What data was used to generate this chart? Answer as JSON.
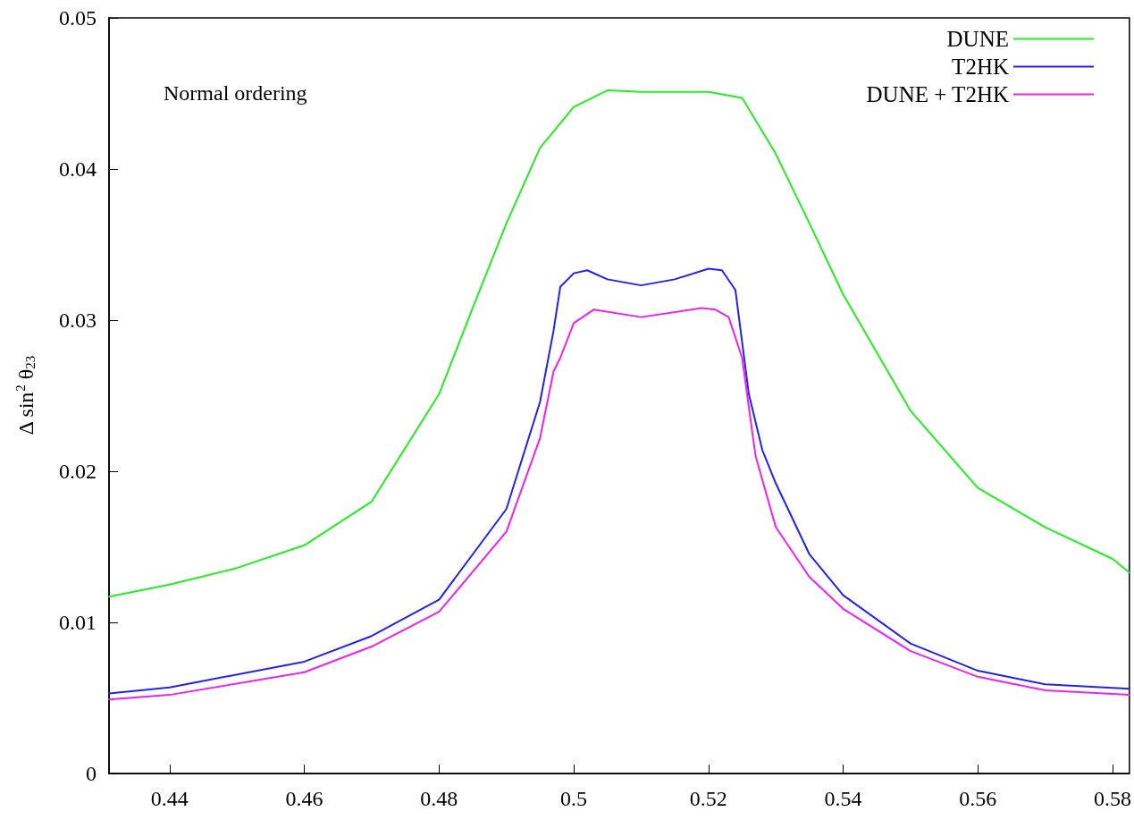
{
  "chart_data": {
    "type": "line",
    "ylabel": "Δ sin$^{2}$ θ$_{23}$",
    "annotations": [
      "Normal ordering"
    ],
    "xlim": [
      0.431,
      0.5825
    ],
    "xticks": [
      0.44,
      0.46,
      0.48,
      0.5,
      0.52,
      0.54,
      0.56,
      0.58
    ],
    "ylim": [
      0,
      0.05
    ],
    "yticks": [
      0,
      0.01,
      0.02,
      0.03,
      0.04,
      0.05
    ],
    "legend": "top right",
    "grid": false,
    "marker": "none",
    "line_style": "solid",
    "series": [
      {
        "name": "DUNE",
        "color": "#22ee22",
        "x": [
          0.431,
          0.44,
          0.45,
          0.46,
          0.47,
          0.48,
          0.485,
          0.49,
          0.495,
          0.5,
          0.505,
          0.51,
          0.515,
          0.52,
          0.525,
          0.53,
          0.535,
          0.54,
          0.55,
          0.56,
          0.57,
          0.58,
          0.5825
        ],
        "values": [
          0.0117,
          0.0125,
          0.0136,
          0.0151,
          0.018,
          0.0251,
          0.0308,
          0.0364,
          0.0414,
          0.0441,
          0.0452,
          0.0451,
          0.0451,
          0.0451,
          0.0447,
          0.041,
          0.0364,
          0.0317,
          0.024,
          0.0189,
          0.0163,
          0.0142,
          0.0133
        ]
      },
      {
        "name": "T2HK",
        "color": "#2222ee",
        "x": [
          0.431,
          0.44,
          0.46,
          0.47,
          0.48,
          0.49,
          0.495,
          0.497,
          0.498,
          0.5,
          0.502,
          0.505,
          0.51,
          0.515,
          0.52,
          0.522,
          0.524,
          0.526,
          0.528,
          0.53,
          0.535,
          0.54,
          0.55,
          0.56,
          0.57,
          0.5825
        ],
        "values": [
          0.0053,
          0.0057,
          0.0074,
          0.0091,
          0.0115,
          0.0175,
          0.0246,
          0.0293,
          0.0322,
          0.0331,
          0.0333,
          0.0327,
          0.0323,
          0.0327,
          0.0334,
          0.0333,
          0.032,
          0.0251,
          0.0214,
          0.0192,
          0.0145,
          0.0118,
          0.0086,
          0.0068,
          0.0059,
          0.0056
        ]
      },
      {
        "name": "DUNE + T2HK",
        "color": "#ee22ee",
        "x": [
          0.431,
          0.44,
          0.46,
          0.47,
          0.48,
          0.49,
          0.495,
          0.497,
          0.498,
          0.5,
          0.503,
          0.51,
          0.519,
          0.521,
          0.523,
          0.525,
          0.527,
          0.53,
          0.535,
          0.54,
          0.55,
          0.56,
          0.57,
          0.5825
        ],
        "values": [
          0.0049,
          0.0052,
          0.0067,
          0.0084,
          0.0107,
          0.016,
          0.0222,
          0.0266,
          0.0275,
          0.0298,
          0.0307,
          0.0302,
          0.0308,
          0.0307,
          0.0302,
          0.0275,
          0.021,
          0.0163,
          0.013,
          0.0109,
          0.0081,
          0.0064,
          0.0055,
          0.0052
        ]
      }
    ]
  }
}
